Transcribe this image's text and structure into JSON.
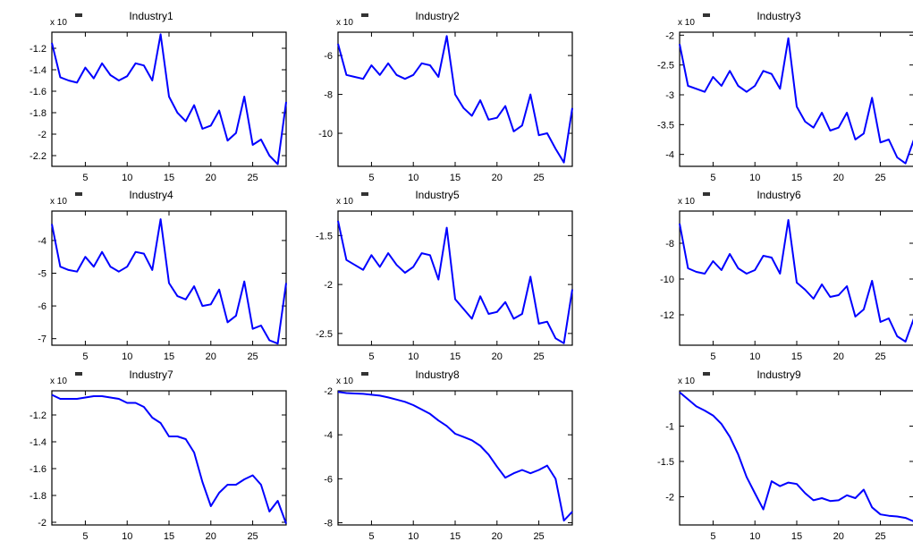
{
  "figure": {
    "colors": {
      "line": "#0000ff",
      "axes": "#000000",
      "background": "#ffffff"
    }
  },
  "chart_data": [
    {
      "type": "line",
      "title": "Industry1",
      "exponent": "x 10",
      "xlim": [
        1,
        29
      ],
      "ylim": [
        -2.3,
        -1.05
      ],
      "xticks": [
        5,
        10,
        15,
        20,
        25
      ],
      "yticks": [
        -1.2,
        -1.4,
        -1.6,
        -1.8,
        -2,
        -2.2
      ],
      "x": [
        1,
        2,
        3,
        4,
        5,
        6,
        7,
        8,
        9,
        10,
        11,
        12,
        13,
        14,
        15,
        16,
        17,
        18,
        19,
        20,
        21,
        22,
        23,
        24,
        25,
        26,
        27,
        28,
        29
      ],
      "y": [
        -1.15,
        -1.47,
        -1.5,
        -1.52,
        -1.38,
        -1.48,
        -1.34,
        -1.45,
        -1.5,
        -1.46,
        -1.34,
        -1.36,
        -1.5,
        -1.07,
        -1.65,
        -1.8,
        -1.88,
        -1.73,
        -1.95,
        -1.92,
        -1.78,
        -2.06,
        -1.99,
        -1.65,
        -2.1,
        -2.05,
        -2.2,
        -2.28,
        -1.7
      ]
    },
    {
      "type": "line",
      "title": "Industry2",
      "exponent": "x 10",
      "xlim": [
        1,
        29
      ],
      "ylim": [
        -11.7,
        -4.8
      ],
      "xticks": [
        5,
        10,
        15,
        20,
        25
      ],
      "yticks": [
        -6,
        -8,
        -10
      ],
      "x": [
        1,
        2,
        3,
        4,
        5,
        6,
        7,
        8,
        9,
        10,
        11,
        12,
        13,
        14,
        15,
        16,
        17,
        18,
        19,
        20,
        21,
        22,
        23,
        24,
        25,
        26,
        27,
        28,
        29
      ],
      "y": [
        -5.4,
        -7,
        -7.1,
        -7.2,
        -6.5,
        -7,
        -6.4,
        -7,
        -7.2,
        -7,
        -6.4,
        -6.5,
        -7.1,
        -5,
        -8,
        -8.7,
        -9.1,
        -8.3,
        -9.3,
        -9.2,
        -8.6,
        -9.9,
        -9.6,
        -8,
        -10.1,
        -10,
        -10.8,
        -11.5,
        -8.7
      ]
    },
    {
      "type": "line",
      "title": "Industry3",
      "exponent": "x 10",
      "xlim": [
        1,
        29
      ],
      "ylim": [
        -4.2,
        -1.95
      ],
      "xticks": [
        5,
        10,
        15,
        20,
        25
      ],
      "yticks": [
        -2,
        -2.5,
        -3,
        -3.5,
        -4
      ],
      "x": [
        1,
        2,
        3,
        4,
        5,
        6,
        7,
        8,
        9,
        10,
        11,
        12,
        13,
        14,
        15,
        16,
        17,
        18,
        19,
        20,
        21,
        22,
        23,
        24,
        25,
        26,
        27,
        28,
        29
      ],
      "y": [
        -2.15,
        -2.85,
        -2.9,
        -2.95,
        -2.7,
        -2.85,
        -2.6,
        -2.85,
        -2.95,
        -2.85,
        -2.6,
        -2.65,
        -2.9,
        -2.05,
        -3.2,
        -3.45,
        -3.55,
        -3.3,
        -3.6,
        -3.55,
        -3.3,
        -3.75,
        -3.65,
        -3.05,
        -3.8,
        -3.75,
        -4.05,
        -4.15,
        -3.75
      ]
    },
    {
      "type": "line",
      "title": "Industry4",
      "exponent": "x 10",
      "xlim": [
        1,
        29
      ],
      "ylim": [
        -7.2,
        -3.1
      ],
      "xticks": [
        5,
        10,
        15,
        20,
        25
      ],
      "yticks": [
        -4,
        -5,
        -6,
        -7
      ],
      "x": [
        1,
        2,
        3,
        4,
        5,
        6,
        7,
        8,
        9,
        10,
        11,
        12,
        13,
        14,
        15,
        16,
        17,
        18,
        19,
        20,
        21,
        22,
        23,
        24,
        25,
        26,
        27,
        28,
        29
      ],
      "y": [
        -3.5,
        -4.8,
        -4.9,
        -4.95,
        -4.5,
        -4.8,
        -4.35,
        -4.8,
        -4.95,
        -4.8,
        -4.35,
        -4.4,
        -4.9,
        -3.35,
        -5.3,
        -5.7,
        -5.8,
        -5.4,
        -6,
        -5.95,
        -5.5,
        -6.5,
        -6.3,
        -5.25,
        -6.7,
        -6.6,
        -7.05,
        -7.15,
        -5.3
      ]
    },
    {
      "type": "line",
      "title": "Industry5",
      "exponent": "x 10",
      "xlim": [
        1,
        29
      ],
      "ylim": [
        -2.62,
        -1.25
      ],
      "xticks": [
        5,
        10,
        15,
        20,
        25
      ],
      "yticks": [
        -1.5,
        -2,
        -2.5
      ],
      "x": [
        1,
        2,
        3,
        4,
        5,
        6,
        7,
        8,
        9,
        10,
        11,
        12,
        13,
        14,
        15,
        16,
        17,
        18,
        19,
        20,
        21,
        22,
        23,
        24,
        25,
        26,
        27,
        28,
        29
      ],
      "y": [
        -1.35,
        -1.75,
        -1.8,
        -1.85,
        -1.7,
        -1.82,
        -1.68,
        -1.8,
        -1.88,
        -1.82,
        -1.68,
        -1.7,
        -1.95,
        -1.42,
        -2.15,
        -2.25,
        -2.35,
        -2.12,
        -2.3,
        -2.28,
        -2.18,
        -2.35,
        -2.3,
        -1.92,
        -2.4,
        -2.38,
        -2.55,
        -2.6,
        -2.05
      ]
    },
    {
      "type": "line",
      "title": "Industry6",
      "exponent": "x 10",
      "xlim": [
        1,
        29
      ],
      "ylim": [
        -13.7,
        -6.2
      ],
      "xticks": [
        5,
        10,
        15,
        20,
        25
      ],
      "yticks": [
        -8,
        -10,
        -12
      ],
      "x": [
        1,
        2,
        3,
        4,
        5,
        6,
        7,
        8,
        9,
        10,
        11,
        12,
        13,
        14,
        15,
        16,
        17,
        18,
        19,
        20,
        21,
        22,
        23,
        24,
        25,
        26,
        27,
        28,
        29
      ],
      "y": [
        -6.9,
        -9.4,
        -9.6,
        -9.7,
        -9,
        -9.5,
        -8.6,
        -9.4,
        -9.7,
        -9.5,
        -8.7,
        -8.8,
        -9.7,
        -6.7,
        -10.2,
        -10.6,
        -11.1,
        -10.3,
        -11,
        -10.9,
        -10.4,
        -12.1,
        -11.7,
        -10.1,
        -12.4,
        -12.2,
        -13.2,
        -13.5,
        -12.2
      ]
    },
    {
      "type": "line",
      "title": "Industry7",
      "exponent": "x 10",
      "xlim": [
        1,
        29
      ],
      "ylim": [
        -2.02,
        -1.02
      ],
      "xticks": [
        5,
        10,
        15,
        20,
        25
      ],
      "yticks": [
        -1.2,
        -1.4,
        -1.6,
        -1.8,
        -2
      ],
      "x": [
        1,
        2,
        3,
        4,
        5,
        6,
        7,
        8,
        9,
        10,
        11,
        12,
        13,
        14,
        15,
        16,
        17,
        18,
        19,
        20,
        21,
        22,
        23,
        24,
        25,
        26,
        27,
        28,
        29
      ],
      "y": [
        -1.05,
        -1.08,
        -1.08,
        -1.08,
        -1.07,
        -1.06,
        -1.06,
        -1.07,
        -1.08,
        -1.11,
        -1.11,
        -1.14,
        -1.22,
        -1.26,
        -1.36,
        -1.36,
        -1.38,
        -1.48,
        -1.7,
        -1.88,
        -1.78,
        -1.72,
        -1.72,
        -1.68,
        -1.65,
        -1.72,
        -1.92,
        -1.84,
        -2.01
      ]
    },
    {
      "type": "line",
      "title": "Industry8",
      "exponent": "x 10",
      "xlim": [
        1,
        29
      ],
      "ylim": [
        -8.1,
        -2
      ],
      "xticks": [
        5,
        10,
        15,
        20,
        25
      ],
      "yticks": [
        -2,
        -4,
        -6,
        -8
      ],
      "x": [
        1,
        2,
        3,
        4,
        5,
        6,
        7,
        8,
        9,
        10,
        11,
        12,
        13,
        14,
        15,
        16,
        17,
        18,
        19,
        20,
        21,
        22,
        23,
        24,
        25,
        26,
        27,
        28,
        29
      ],
      "y": [
        -2.05,
        -2.1,
        -2.12,
        -2.14,
        -2.18,
        -2.22,
        -2.3,
        -2.4,
        -2.5,
        -2.65,
        -2.85,
        -3.05,
        -3.35,
        -3.6,
        -3.95,
        -4.1,
        -4.25,
        -4.5,
        -4.9,
        -5.45,
        -5.95,
        -5.75,
        -5.6,
        -5.75,
        -5.6,
        -5.4,
        -6,
        -7.9,
        -7.5
      ]
    },
    {
      "type": "line",
      "title": "Industry9",
      "exponent": "x 10",
      "xlim": [
        1,
        29
      ],
      "ylim": [
        -2.4,
        -0.5
      ],
      "xticks": [
        5,
        10,
        15,
        20,
        25
      ],
      "yticks": [
        -1,
        -1.5,
        -2
      ],
      "x": [
        1,
        2,
        3,
        4,
        5,
        6,
        7,
        8,
        9,
        10,
        11,
        12,
        13,
        14,
        15,
        16,
        17,
        18,
        19,
        20,
        21,
        22,
        23,
        24,
        25,
        26,
        27,
        28,
        29
      ],
      "y": [
        -0.52,
        -0.62,
        -0.72,
        -0.78,
        -0.85,
        -0.97,
        -1.15,
        -1.4,
        -1.72,
        -1.95,
        -2.18,
        -1.78,
        -1.85,
        -1.8,
        -1.82,
        -1.95,
        -2.05,
        -2.02,
        -2.06,
        -2.05,
        -1.98,
        -2.02,
        -1.9,
        -2.15,
        -2.25,
        -2.27,
        -2.28,
        -2.3,
        -2.35
      ]
    }
  ]
}
